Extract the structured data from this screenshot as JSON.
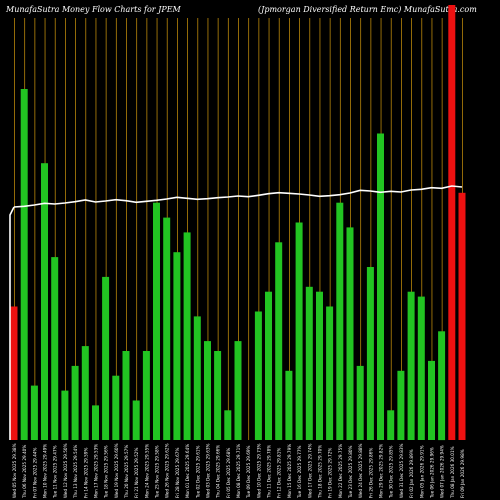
{
  "header": {
    "left": "MunafaSutra  Money  Flow  Charts  for  JPEM",
    "right": "(Jpmorgan  Diversified  Return  Emc)  MunafaSutra.com"
  },
  "chart_data": {
    "type": "bar",
    "title": "MunafaSutra  Money  Flow  Charts  for  JPEM",
    "subtitle": "(Jpmorgan  Diversified  Return  Emc)  MunafaSutra.com",
    "categories": [
      "Fri 09 Jan 2026",
      "Thu 08 Jan 2026",
      "Wed 07 Jan 2026",
      "Tue 06 Jan 2026",
      "Mon 05 Jan 2026",
      "Fri 02 Jan 2026",
      "Wed 31 Dec 2025",
      "Tue 30 Dec 2025",
      "Mon 29 Dec 2025",
      "Fri 26 Dec 2025",
      "Wed 24 Dec 2025",
      "Tue 23 Dec 2025",
      "Mon 22 Dec 2025",
      "Fri 19 Dec 2025",
      "Thu 18 Dec 2025",
      "Wed 17 Dec 2025",
      "Tue 16 Dec 2025",
      "Mon 15 Dec 2025",
      "Fri 12 Dec 2025",
      "Thu 11 Dec 2025",
      "Wed 10 Dec 2025",
      "Tue 09 Dec 2025",
      "Mon 08 Dec 2025",
      "Fri 05 Dec 2025",
      "Thu 04 Dec 2025",
      "Wed 03 Dec 2025",
      "Tue 02 Dec 2025",
      "Mon 01 Dec 2025",
      "Fri 28 Nov 2025",
      "Wed 26 Nov 2025",
      "Tue 25 Nov 2025",
      "Mon 24 Nov 2025",
      "Fri 21 Nov 2025",
      "Thu 20 Nov 2025",
      "Wed 19 Nov 2025",
      "Tue 18 Nov 2025",
      "Mon 17 Nov 2025",
      "Fri 14 Nov 2025",
      "Thu 13 Nov 2025",
      "Wed 12 Nov 2025",
      "Tue 11 Nov 2025",
      "Mon 10 Nov 2025",
      "Fri 07 Nov 2025",
      "Thu 06 Nov 2025",
      "Wed 05 Nov 2025"
    ],
    "tick_labels": [
      "Fri 09 Jan 2026 29.98%",
      "Thu 08 Jan 2026 30.01%",
      "Wed 07 Jan 2026 29.94%",
      "Tue 06 Jan 2026 29.96%",
      "Mon 05 Jan 2026 29.91%",
      "Fri 02 Jan 2026 29.89%",
      "Wed 31 Dec 2025 29.83%",
      "Tue 30 Dec 2025 29.85%",
      "Mon 29 Dec 2025 29.82%",
      "Fri 26 Dec 2025 29.86%",
      "Wed 24 Dec 2025 29.88%",
      "Tue 23 Dec 2025 29.80%",
      "Mon 22 Dec 2025 29.75%",
      "Fri 19 Dec 2025 29.72%",
      "Thu 18 Dec 2025 29.70%",
      "Wed 17 Dec 2025 29.74%",
      "Tue 16 Dec 2025 29.77%",
      "Mon 15 Dec 2025 29.79%",
      "Fri 12 Dec 2025 29.81%",
      "Thu 11 Dec 2025 29.78%",
      "Wed 10 Dec 2025 29.73%",
      "Tue 09 Dec 2025 29.69%",
      "Mon 08 Dec 2025 29.71%",
      "Fri 05 Dec 2025 29.68%",
      "Thu 04 Dec 2025 29.66%",
      "Wed 03 Dec 2025 29.63%",
      "Tue 02 Dec 2025 29.61%",
      "Mon 01 Dec 2025 29.64%",
      "Fri 28 Nov 2025 29.67%",
      "Wed 26 Nov 2025 29.62%",
      "Tue 25 Nov 2025 29.58%",
      "Mon 24 Nov 2025 29.55%",
      "Fri 21 Nov 2025 29.52%",
      "Thu 20 Nov 2025 29.57%",
      "Wed 19 Nov 2025 29.60%",
      "Tue 18 Nov 2025 29.56%",
      "Mon 17 Nov 2025 29.53%",
      "Fri 14 Nov 2025 29.59%",
      "Thu 13 Nov 2025 29.54%",
      "Wed 12 Nov 2025 29.50%",
      "Tue 11 Nov 2025 29.47%",
      "Mon 10 Nov 2025 29.49%",
      "Fri 07 Nov 2025 29.44%",
      "Thu 06 Nov 2025 29.40%",
      "Wed 05 Nov 2025 29.38%"
    ],
    "series": [
      {
        "kind": "bar",
        "values": [
          50,
          88,
          22,
          16,
          29,
          30,
          14,
          6,
          62,
          35,
          15,
          43,
          48,
          27,
          30,
          31,
          44,
          14,
          40,
          30,
          26,
          0,
          20,
          6,
          18,
          20,
          25,
          42,
          38,
          45,
          48,
          18,
          8,
          18,
          13,
          33,
          7,
          19,
          15,
          10,
          37,
          56,
          11,
          71,
          27
        ],
        "colors": [
          "red",
          "red",
          "green",
          "green",
          "green",
          "green",
          "green",
          "green",
          "green",
          "green",
          "green",
          "green",
          "green",
          "green",
          "green",
          "green",
          "green",
          "green",
          "green",
          "green",
          "green",
          "green",
          "green",
          "green",
          "green",
          "green",
          "green",
          "green",
          "green",
          "green",
          "green",
          "green",
          "green",
          "green",
          "green",
          "green",
          "green",
          "green",
          "green",
          "green",
          "green",
          "green",
          "green",
          "green",
          "red"
        ]
      },
      {
        "kind": "line",
        "values": [
          29.98,
          30.01,
          29.94,
          29.96,
          29.91,
          29.89,
          29.83,
          29.85,
          29.82,
          29.86,
          29.88,
          29.8,
          29.75,
          29.72,
          29.7,
          29.74,
          29.77,
          29.79,
          29.81,
          29.78,
          29.73,
          29.69,
          29.71,
          29.68,
          29.66,
          29.63,
          29.61,
          29.64,
          29.67,
          29.62,
          29.58,
          29.55,
          29.52,
          29.57,
          29.6,
          29.56,
          29.53,
          29.59,
          29.54,
          29.5,
          29.47,
          29.49,
          29.44,
          29.4,
          29.38
        ]
      }
    ],
    "colors": {
      "background": "#000000",
      "green": "#22c422",
      "red": "#ee1111",
      "grid": "#b8860b",
      "line": "#ffffff",
      "text": "#ffffff"
    },
    "grid": true
  }
}
